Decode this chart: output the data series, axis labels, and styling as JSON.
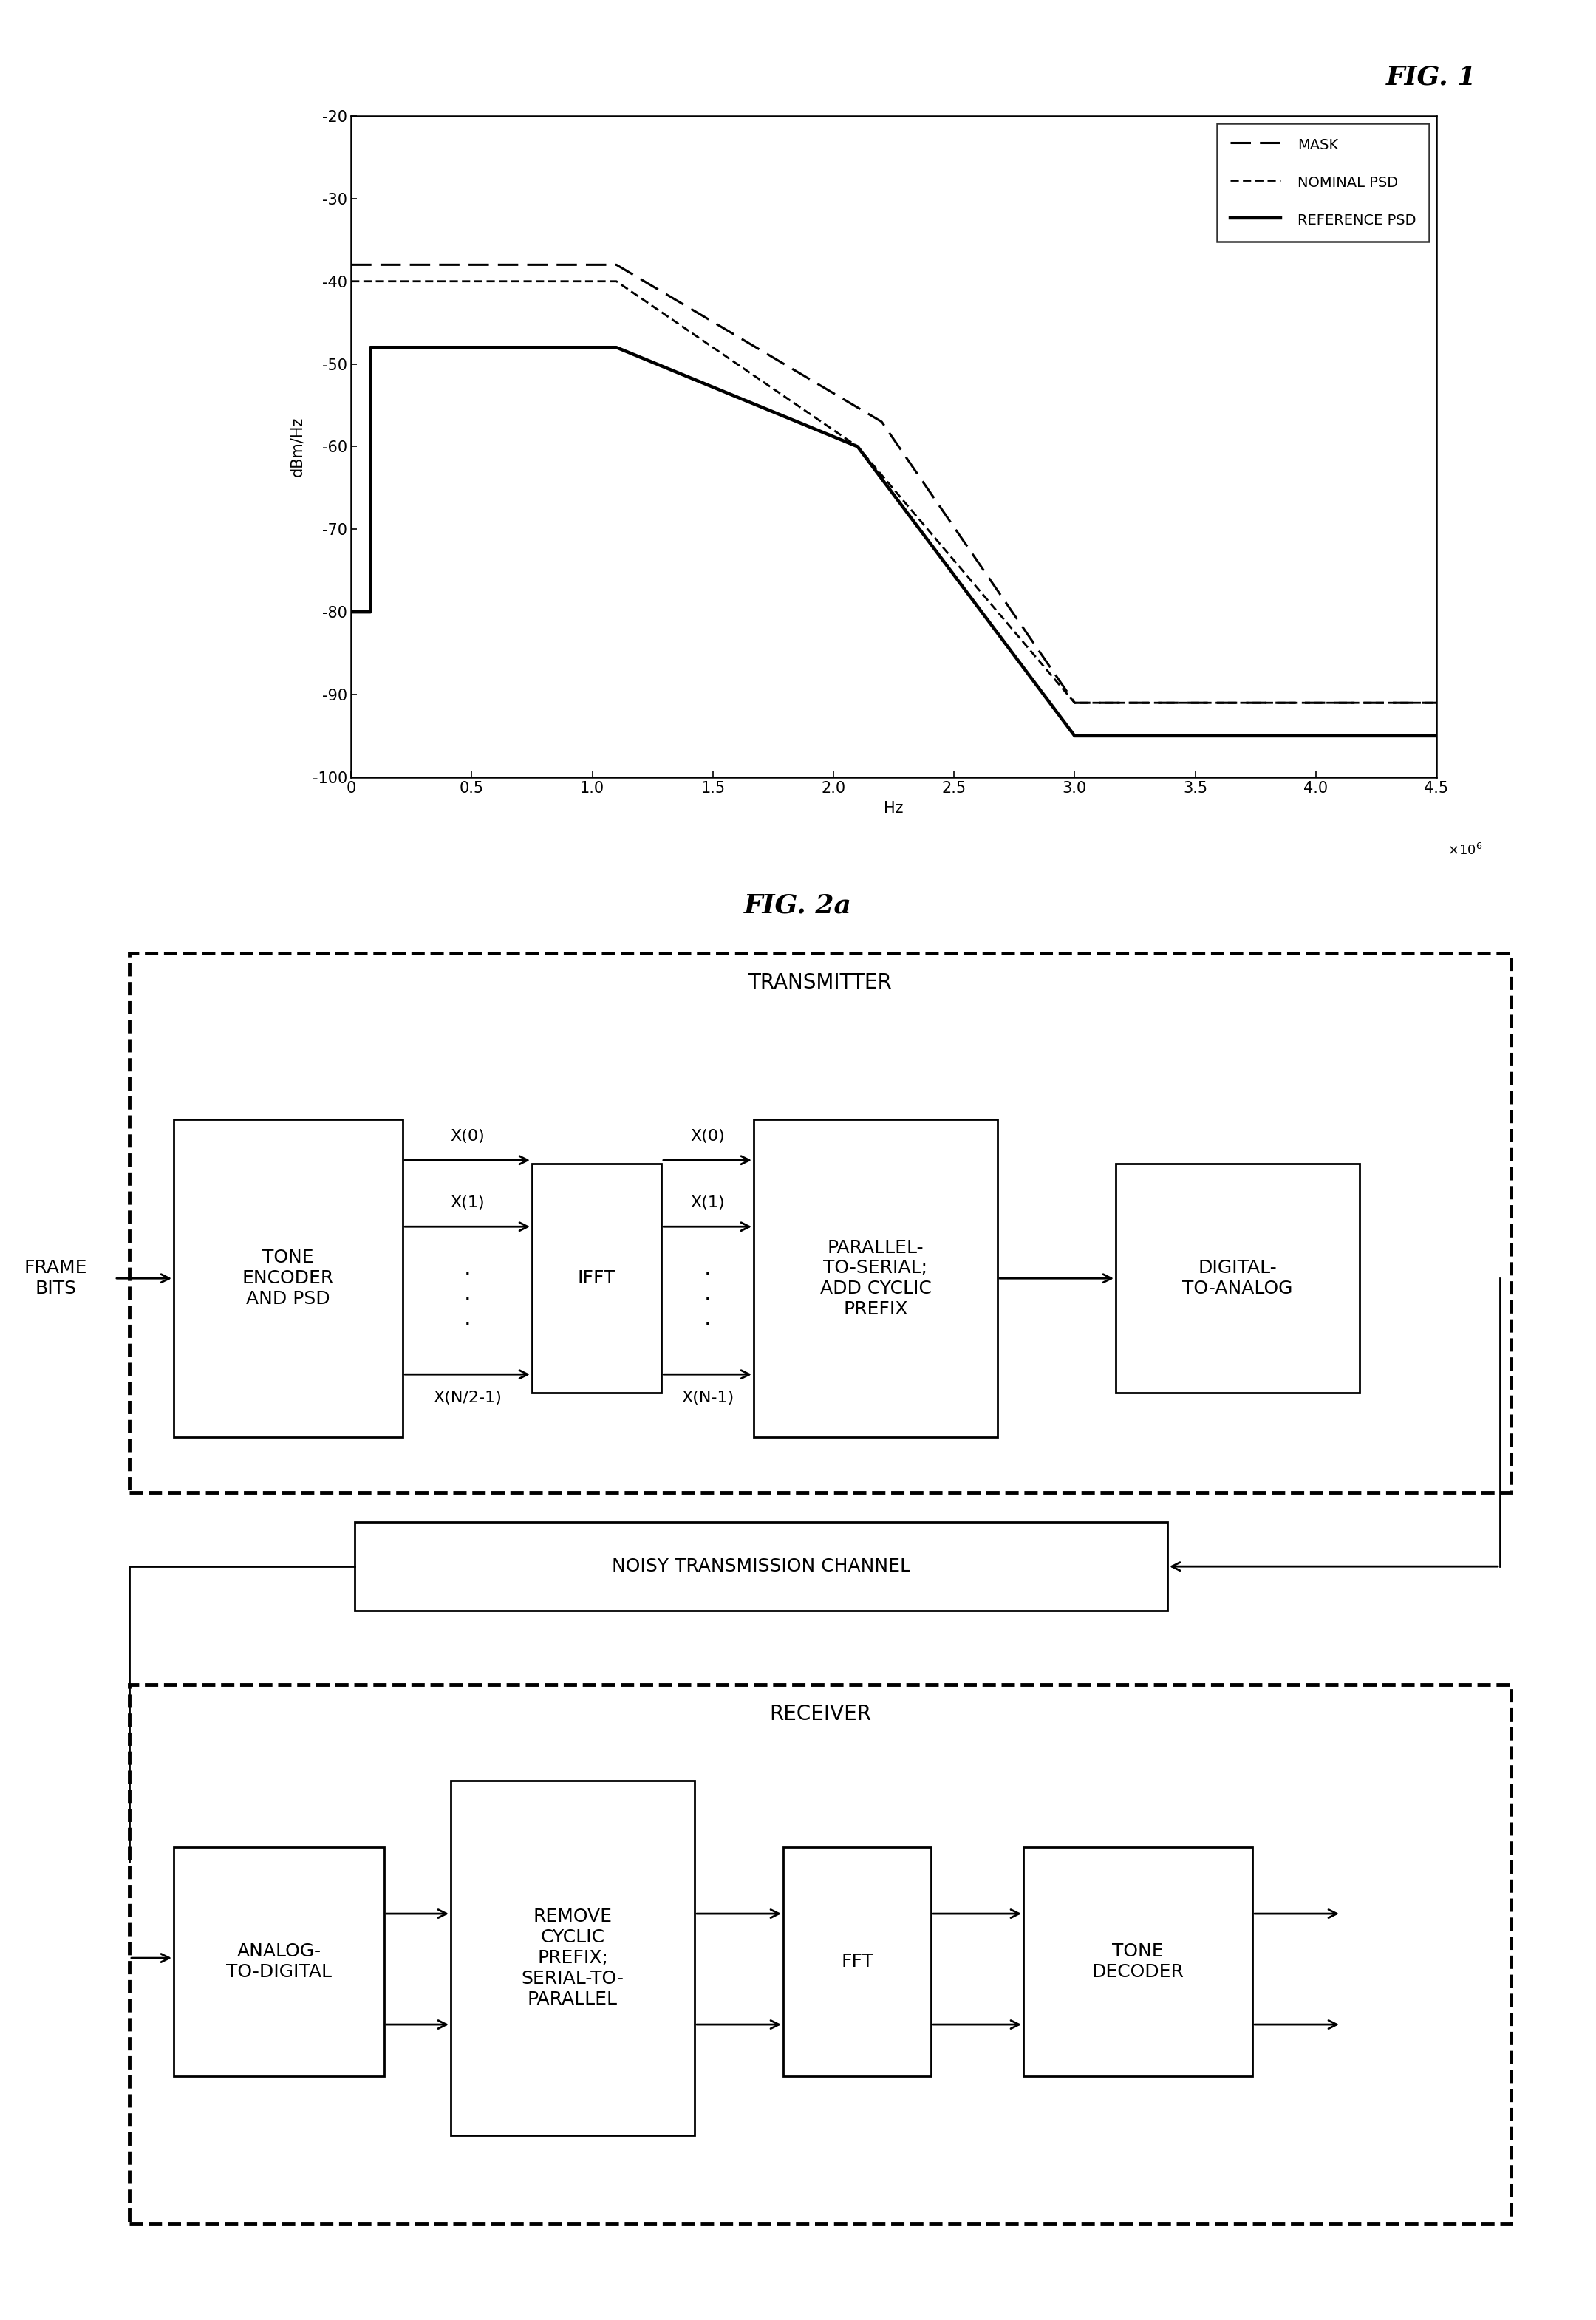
{
  "fig1_title": "FIG. 1",
  "fig2a_title": "FIG. 2a",
  "ylabel": "dBm/Hz",
  "xlabel": "Hz",
  "ylim": [
    -100,
    -20
  ],
  "xlim": [
    0,
    4.5
  ],
  "yticks": [
    -100,
    -90,
    -80,
    -70,
    -60,
    -50,
    -40,
    -30,
    -20
  ],
  "xticks": [
    0,
    0.5,
    1.0,
    1.5,
    2.0,
    2.5,
    3.0,
    3.5,
    4.0,
    4.5
  ],
  "mask_x": [
    0.0,
    0.1,
    1.1,
    2.2,
    3.0,
    4.5
  ],
  "mask_y": [
    -38,
    -38,
    -38,
    -57,
    -91,
    -91
  ],
  "nominal_x": [
    0.0,
    0.1,
    1.1,
    2.1,
    3.0,
    4.5
  ],
  "nominal_y": [
    -40,
    -40,
    -40,
    -60,
    -91,
    -91
  ],
  "reference_x": [
    0.0,
    0.08,
    0.08,
    1.1,
    2.1,
    3.0,
    4.5
  ],
  "reference_y": [
    -80,
    -80,
    -48,
    -48,
    -60,
    -95,
    -95
  ],
  "bg_color": "#ffffff",
  "line_color": "#000000"
}
